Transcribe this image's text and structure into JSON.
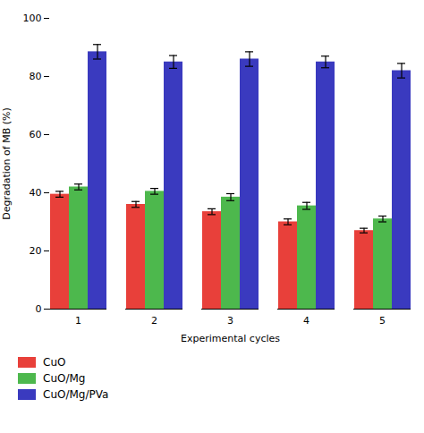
{
  "chart_data": {
    "type": "bar",
    "xlabel": "Experimental cycles",
    "ylabel": "Degradation of MB (%)",
    "categories": [
      1,
      2,
      3,
      4,
      5
    ],
    "series": [
      {
        "name": "CuO",
        "color": "#e8403a",
        "values": [
          39.5,
          36,
          33.5,
          30,
          27
        ],
        "errors": [
          1.0,
          1.0,
          1.0,
          1.0,
          0.8
        ]
      },
      {
        "name": "CuO/Mg",
        "color": "#4db84d",
        "values": [
          42,
          40.5,
          38.5,
          35.5,
          31
        ],
        "errors": [
          1.0,
          1.0,
          1.2,
          1.2,
          1.0
        ]
      },
      {
        "name": "CuO/Mg/PVa",
        "color": "#3a3abf",
        "values": [
          88.5,
          85,
          86,
          85,
          82
        ],
        "errors": [
          2.5,
          2.2,
          2.5,
          2.0,
          2.5
        ]
      }
    ],
    "ylim": [
      0,
      100
    ],
    "yticks": [
      0,
      20,
      40,
      60,
      80,
      100
    ],
    "grid": false,
    "legend": "bottom"
  }
}
